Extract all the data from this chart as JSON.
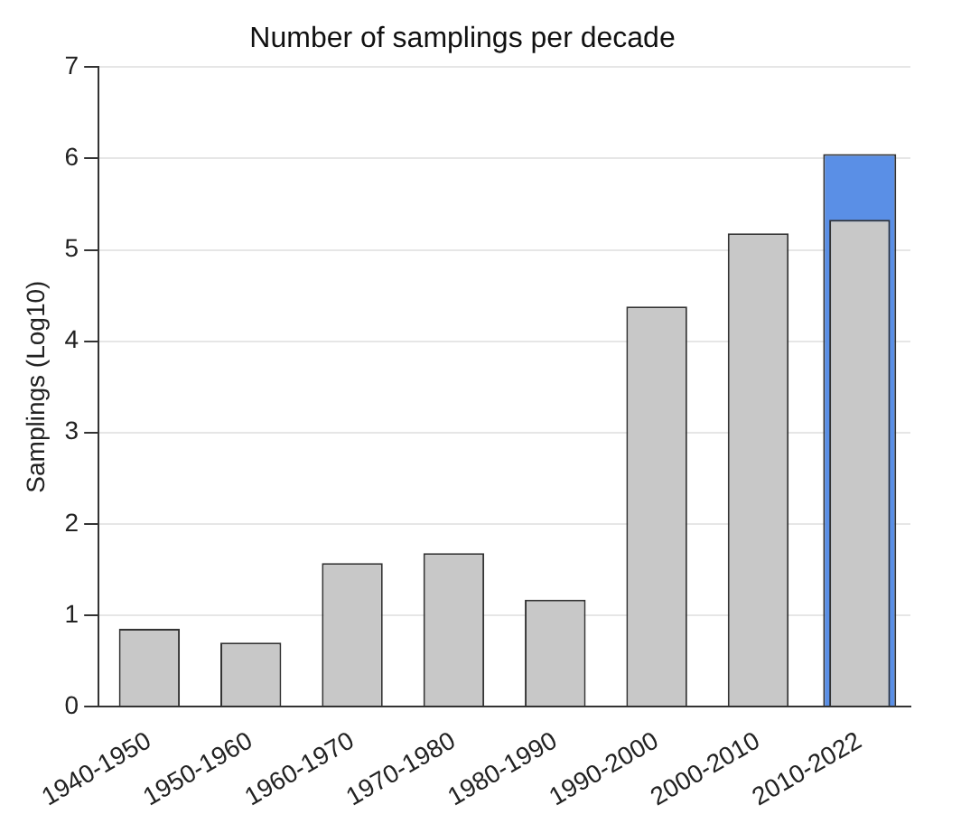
{
  "chart_data": {
    "type": "bar",
    "title": "Number of samplings per decade",
    "ylabel": "Samplings (Log10)",
    "categories": [
      "1940-1950",
      "1950-1960",
      "1960-1970",
      "1970-1980",
      "1980-1990",
      "1990-2000",
      "2000-2010",
      "2010-2022"
    ],
    "series": [
      {
        "color": "#c8c8c8",
        "values": [
          0.85,
          0.7,
          1.57,
          1.68,
          1.17,
          4.38,
          5.18,
          5.33
        ]
      },
      {
        "color": "#5a8fe6",
        "values": [
          null,
          null,
          null,
          null,
          null,
          null,
          null,
          6.05
        ]
      }
    ],
    "ylim": [
      0,
      7
    ],
    "yticks": [
      0,
      1,
      2,
      3,
      4,
      5,
      6,
      7
    ],
    "grid": "y",
    "legend": false
  }
}
